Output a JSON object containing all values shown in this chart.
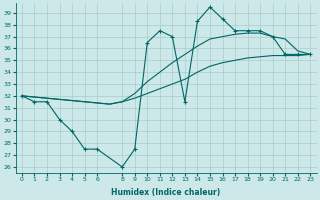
{
  "xlabel": "Humidex (Indice chaleur)",
  "bg_color": "#cce8e8",
  "line_color": "#006666",
  "grid_color": "#aacccc",
  "xlim": [
    -0.5,
    23.5
  ],
  "ylim": [
    25.5,
    39.8
  ],
  "yticks": [
    26,
    27,
    28,
    29,
    30,
    31,
    32,
    33,
    34,
    35,
    36,
    37,
    38,
    39
  ],
  "xticks": [
    0,
    1,
    2,
    3,
    4,
    5,
    6,
    8,
    9,
    10,
    11,
    12,
    13,
    14,
    15,
    16,
    17,
    18,
    19,
    20,
    21,
    22,
    23
  ],
  "line1_x": [
    0,
    1,
    2,
    3,
    4,
    5,
    6,
    8,
    9,
    10,
    11,
    12,
    13,
    14,
    15,
    16,
    17,
    18,
    19,
    20,
    21,
    22,
    23
  ],
  "line1_y": [
    32.0,
    31.5,
    31.5,
    30.0,
    29.0,
    27.5,
    27.5,
    26.0,
    27.5,
    36.5,
    37.5,
    37.0,
    31.5,
    38.3,
    39.5,
    38.5,
    37.5,
    37.5,
    37.5,
    37.0,
    35.5,
    35.5,
    35.5
  ],
  "line2_x": [
    0,
    1,
    2,
    3,
    4,
    5,
    6,
    7,
    8,
    9,
    10,
    11,
    12,
    13,
    14,
    15,
    16,
    17,
    18,
    19,
    20,
    21,
    22,
    23
  ],
  "line2_y": [
    32.0,
    31.9,
    31.8,
    31.7,
    31.6,
    31.5,
    31.4,
    31.3,
    31.5,
    31.8,
    32.2,
    32.6,
    33.0,
    33.4,
    34.0,
    34.5,
    34.8,
    35.0,
    35.2,
    35.3,
    35.4,
    35.4,
    35.4,
    35.5
  ],
  "line3_x": [
    0,
    1,
    2,
    3,
    4,
    5,
    6,
    7,
    8,
    9,
    10,
    11,
    12,
    13,
    14,
    15,
    16,
    17,
    18,
    19,
    20,
    21,
    22,
    23
  ],
  "line3_y": [
    32.0,
    31.9,
    31.8,
    31.7,
    31.6,
    31.5,
    31.4,
    31.3,
    31.5,
    32.2,
    33.2,
    34.0,
    34.8,
    35.5,
    36.2,
    36.8,
    37.0,
    37.2,
    37.3,
    37.3,
    37.0,
    36.8,
    35.8,
    35.5
  ]
}
